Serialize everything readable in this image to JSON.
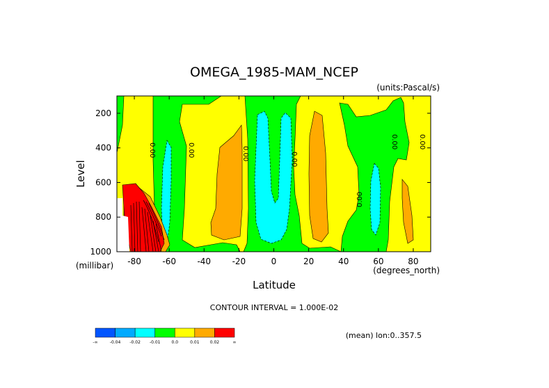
{
  "chart_data": {
    "type": "heatmap",
    "title": "OMEGA_1985-MAM_NCEP",
    "units": "(units:Pascal/s)",
    "xlabel": "Latitude",
    "ylabel": "Level",
    "x_unit": "(degrees_north)",
    "y_unit": "(millibar)",
    "xlim": [
      -90,
      90
    ],
    "ylim": [
      1000,
      100
    ],
    "x_ticks": [
      -80,
      -60,
      -40,
      -20,
      0,
      20,
      40,
      60,
      80
    ],
    "x_tick_labels": [
      "-80",
      "-60",
      "-40",
      "-20",
      "0",
      "20",
      "40",
      "60",
      "80"
    ],
    "y_ticks": [
      200,
      400,
      600,
      800,
      1000
    ],
    "y_tick_labels": [
      "200",
      "400",
      "600",
      "800",
      "1000"
    ],
    "contour_interval": "CONTOUR INTERVAL = 1.000E-02",
    "mean_note": "(mean) lon:0..357.5",
    "contour_labels": [
      "0.00",
      "0.00",
      "0.00",
      "0.00",
      "0.00",
      "0.00",
      "0.00"
    ],
    "colorbar": [
      {
        "color": "#0055ff",
        "label": "-∞"
      },
      {
        "color": "#00aaff",
        "label": "-0.04"
      },
      {
        "color": "#00ffff",
        "label": "-0.02"
      },
      {
        "color": "#00ff00",
        "label": "-0.01"
      },
      {
        "color": "#ffff00",
        "label": "0.0"
      },
      {
        "color": "#ffaa00",
        "label": "0.01"
      },
      {
        "color": "#ff0000",
        "label": "0.02"
      },
      {
        "color": "#ff0000",
        "label": "∞"
      }
    ],
    "regions": [
      {
        "name": "yellow-field",
        "color": "#ffff00",
        "value_range": "0.00 to 0.01"
      },
      {
        "name": "green-sp",
        "color": "#00ff00",
        "value_range": "-0.01 to 0.00"
      },
      {
        "name": "cyan-sp",
        "color": "#00ffff",
        "value_range": "-0.02 to -0.01"
      },
      {
        "name": "orange-sp",
        "color": "#ffaa00",
        "value_range": "0.01 to 0.02"
      },
      {
        "name": "red-antarctic",
        "color": "#ff0000",
        "value_range": "> 0.02"
      },
      {
        "name": "green-tropics",
        "color": "#00ff00",
        "value_range": "-0.01 to 0.00"
      },
      {
        "name": "cyan-tropics",
        "color": "#00ffff",
        "value_range": "-0.02 to -0.01"
      },
      {
        "name": "orange-nh-subtropics",
        "color": "#ffaa00",
        "value_range": "0.01 to 0.02"
      },
      {
        "name": "green-nh-midlat",
        "color": "#00ff00",
        "value_range": "-0.01 to 0.00"
      },
      {
        "name": "cyan-nh-midlat",
        "color": "#00ffff",
        "value_range": "-0.02 to -0.01"
      },
      {
        "name": "orange-nh-polar",
        "color": "#ffaa00",
        "value_range": "0.01 to 0.02"
      }
    ]
  }
}
